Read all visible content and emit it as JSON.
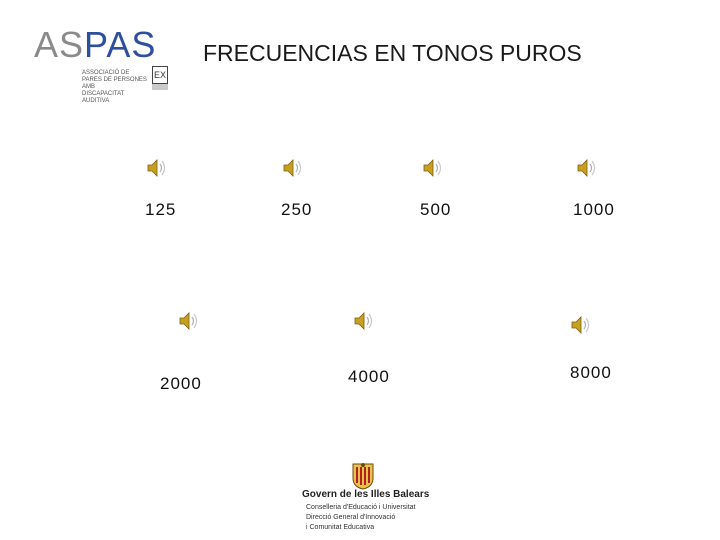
{
  "logo": {
    "text_a": "AS",
    "text_b": "PAS",
    "subtitle_lines": [
      "ASSOCIACIÓ DE",
      "PARES DE PERSONES AMB",
      "DISCAPACITAT AUDITIVA"
    ],
    "badge": "EX"
  },
  "title": "FRECUENCIAS EN TONOS PUROS",
  "tones": [
    {
      "label": "125"
    },
    {
      "label": "250"
    },
    {
      "label": "500"
    },
    {
      "label": "1000"
    },
    {
      "label": "2000"
    },
    {
      "label": "4000"
    },
    {
      "label": "8000"
    }
  ],
  "icons": {
    "tone": "speaker-sound-icon",
    "crest": "coat-of-arms-icon"
  },
  "colors": {
    "logo_blue": "#2d4f9e",
    "logo_gray": "#8a8a8a",
    "speaker": "#c8a020"
  },
  "footer": {
    "title": "Govern de les Illes Balears",
    "lines": [
      "Conselleria d'Educació i Universitat",
      "Direcció General d'Innovació",
      "i Comunitat Educativa"
    ]
  }
}
